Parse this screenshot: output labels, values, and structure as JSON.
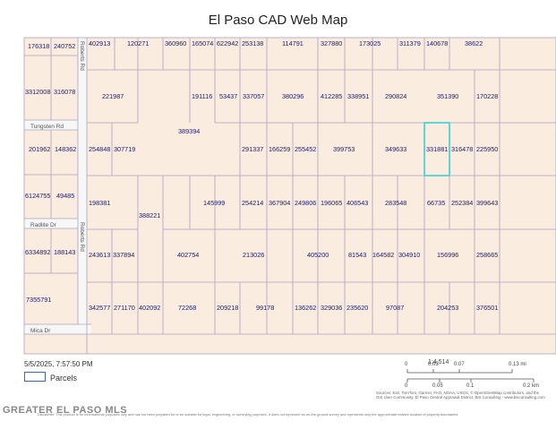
{
  "title": "El Paso CAD Web Map",
  "timestamp": "5/5/2025, 7:57:50 PM",
  "legend": {
    "label": "Parcels",
    "swatch_color": "#3a66c4"
  },
  "colors": {
    "parcel_fill": "#fbece0",
    "parcel_line": "#a9a3c3",
    "highlight": "#4fd3d6",
    "road_fill": "#f7f7f7"
  },
  "scale": {
    "ratio": "1:4,514",
    "mi_ticks": [
      "0",
      "0.03",
      "0.07",
      "0.13 mi"
    ],
    "km_ticks": [
      "0",
      "0.05",
      "0.1",
      "0.2 km"
    ]
  },
  "roads": {
    "tungsten": "Tungsten Rd",
    "radlite": "Radlite Dr",
    "roberts_1": "Roberts Rd",
    "roberts_2": "Roberts Rd",
    "mica": "Mica Dr"
  },
  "parcels": {
    "r1": [
      "176318",
      "240752",
      "402913",
      "120271",
      "360960",
      "165074",
      "622942",
      "253138",
      "114791",
      "327880",
      "173025",
      "311379",
      "140678",
      "38622"
    ],
    "r2": [
      "3312008",
      "316078",
      "221987",
      "191116",
      "53437",
      "337057",
      "380296",
      "412285",
      "338951",
      "290824",
      "351390",
      "170228"
    ],
    "r3": [
      "389394"
    ],
    "r4": [
      "201962",
      "148362",
      "254848",
      "307719",
      "291337",
      "166259",
      "255452",
      "399753",
      "349633",
      "331881",
      "316478",
      "225950"
    ],
    "r5": [
      "6124755",
      "49485",
      "198381",
      "145999",
      "254214",
      "367904",
      "249806",
      "196065",
      "406543",
      "283548",
      "66735",
      "252384",
      "399643"
    ],
    "r6": [
      "388221"
    ],
    "r7": [
      "6334892",
      "188143",
      "243613",
      "337894",
      "402754",
      "213026",
      "405200",
      "81543",
      "164582",
      "304910",
      "156996",
      "258665"
    ],
    "r8": [
      "7355791"
    ],
    "r9": [
      "342577",
      "271170",
      "402092",
      "72268",
      "209218",
      "99178",
      "136262",
      "329036",
      "235620",
      "97087",
      "204253",
      "376501"
    ]
  },
  "attribution": "Sources: Esri, TomTom, Garmin, FAO, NOAA, USGS, © OpenStreetMap contributors, and the GIS User Community. El Paso Central Appraisal District, BIS Consulting - www.bisconsulting.com",
  "watermark": "GREATER EL PASO MLS",
  "disclaimer": "Disclaimer: This product is for informational purposes only and has not been prepared for or be suitable for legal, engineering, or surveying purposes. It does not represent an on-the-ground survey and represents only the approximate relative location of property boundaries."
}
